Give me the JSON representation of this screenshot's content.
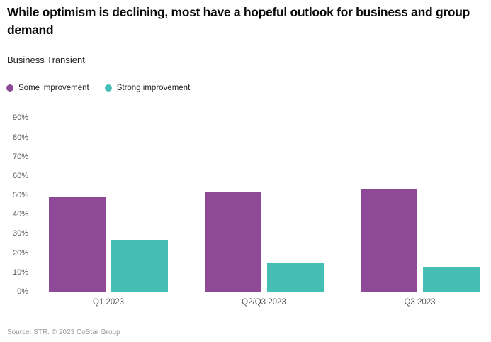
{
  "chart_data": {
    "type": "bar",
    "title": "While optimism is declining, most have a hopeful outlook for business and group demand",
    "subtitle": "Business Transient",
    "categories": [
      "Q1 2023",
      "Q2/Q3 2023",
      "Q3 2023"
    ],
    "series": [
      {
        "name": "Some improvement",
        "color": "#8e4a96",
        "values": [
          49,
          52,
          53
        ]
      },
      {
        "name": "Strong improvement",
        "color": "#45bfb3",
        "values": [
          27,
          15,
          13
        ]
      }
    ],
    "xlabel": "",
    "ylabel": "",
    "ylim": [
      0,
      96
    ],
    "yticks": [
      0,
      10,
      20,
      30,
      40,
      50,
      60,
      70,
      80,
      90
    ],
    "ytick_format": "percent",
    "grid": false,
    "legend_position": "top-left"
  },
  "source": {
    "text": "Source: STR. © 2023 CoStar Group"
  }
}
